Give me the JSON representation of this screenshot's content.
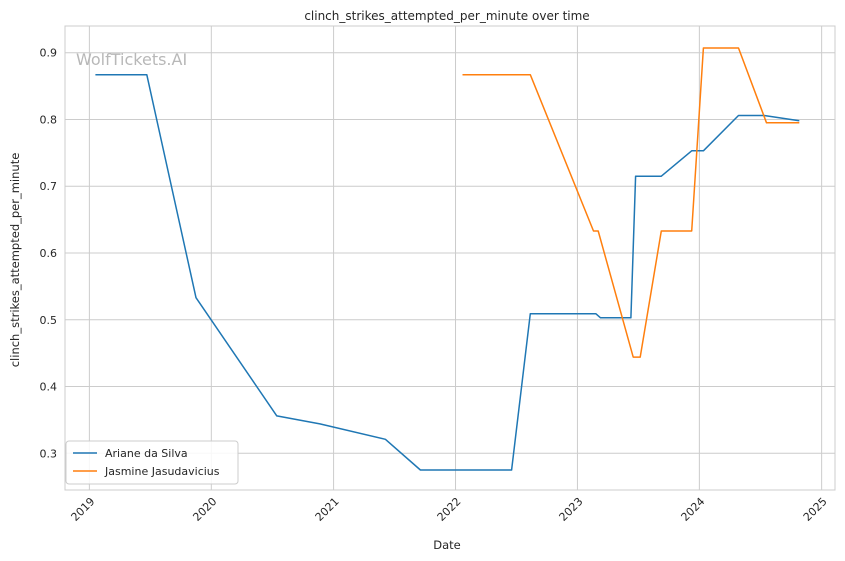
{
  "chart_data": {
    "type": "line",
    "title": "clinch_strikes_attempted_per_minute over time",
    "xlabel": "Date",
    "ylabel": "clinch_strikes_attempted_per_minute",
    "watermark": "WolfTickets.AI",
    "xlim": [
      "2018-10-20",
      "2025-02-10"
    ],
    "ylim": [
      0.245,
      0.94
    ],
    "x_ticks": [
      "2019",
      "2020",
      "2021",
      "2022",
      "2023",
      "2024",
      "2025"
    ],
    "y_ticks": [
      "0.3",
      "0.4",
      "0.5",
      "0.6",
      "0.7",
      "0.8",
      "0.9"
    ],
    "grid": true,
    "legend_position": "bottom-left",
    "series": [
      {
        "name": "Ariane da Silva",
        "color": "#1f77b4",
        "points": [
          [
            "2019-01-19",
            0.867
          ],
          [
            "2019-06-22",
            0.867
          ],
          [
            "2019-11-16",
            0.533
          ],
          [
            "2020-07-15",
            0.356
          ],
          [
            "2020-11-21",
            0.344
          ],
          [
            "2021-06-05",
            0.321
          ],
          [
            "2021-09-18",
            0.275
          ],
          [
            "2022-06-18",
            0.275
          ],
          [
            "2022-08-13",
            0.509
          ],
          [
            "2023-02-25",
            0.509
          ],
          [
            "2023-03-11",
            0.503
          ],
          [
            "2023-06-10",
            0.503
          ],
          [
            "2023-06-24",
            0.715
          ],
          [
            "2023-09-09",
            0.715
          ],
          [
            "2023-12-09",
            0.753
          ],
          [
            "2024-01-13",
            0.753
          ],
          [
            "2024-04-27",
            0.806
          ],
          [
            "2024-07-13",
            0.806
          ],
          [
            "2024-10-26",
            0.798
          ]
        ]
      },
      {
        "name": "Jasmine Jasudavicius",
        "color": "#ff7f0e",
        "points": [
          [
            "2022-01-22",
            0.867
          ],
          [
            "2022-08-13",
            0.867
          ],
          [
            "2023-02-18",
            0.633
          ],
          [
            "2023-03-04",
            0.633
          ],
          [
            "2023-06-17",
            0.444
          ],
          [
            "2023-07-08",
            0.444
          ],
          [
            "2023-09-09",
            0.633
          ],
          [
            "2023-12-09",
            0.633
          ],
          [
            "2024-01-13",
            0.907
          ],
          [
            "2024-04-27",
            0.907
          ],
          [
            "2024-07-20",
            0.795
          ],
          [
            "2024-10-26",
            0.795
          ]
        ]
      }
    ]
  }
}
